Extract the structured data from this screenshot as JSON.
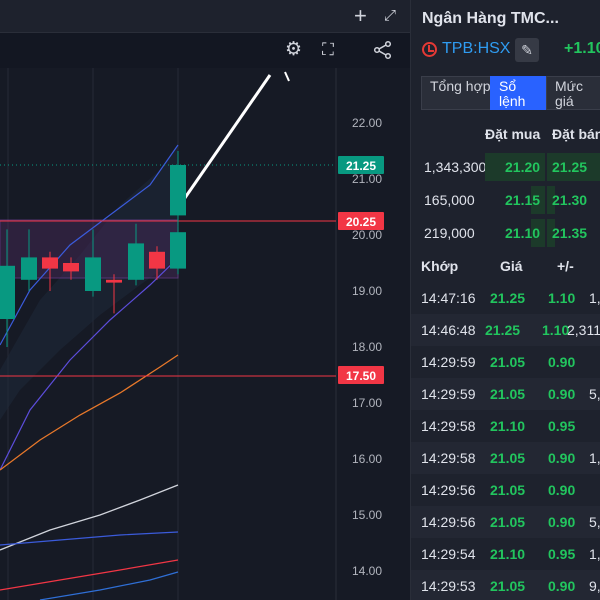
{
  "chart": {
    "price_axis_labels": [
      "22.00",
      "21.00",
      "20.00",
      "19.00",
      "18.00",
      "17.00",
      "16.00",
      "15.00",
      "14.00"
    ],
    "badges": [
      {
        "text": "21.25",
        "color": "#089981"
      },
      {
        "text": "20.25",
        "color": "#f23645"
      },
      {
        "text": "17.50",
        "color": "#f23645"
      }
    ],
    "icons": {
      "add": "plus-icon",
      "expand": "expand-icon",
      "settings": "gear-icon",
      "fullscreen": "fullscreen-icon",
      "share": "share-icon"
    }
  },
  "chart_data": {
    "type": "candlestick",
    "ylim": [
      13.8,
      22.8
    ],
    "candles": [
      {
        "o": 18.5,
        "h": 20.1,
        "l": 18.0,
        "c": 19.45
      },
      {
        "o": 19.2,
        "h": 20.1,
        "l": 19.0,
        "c": 19.6
      },
      {
        "o": 19.6,
        "h": 19.7,
        "l": 19.0,
        "c": 19.4
      },
      {
        "o": 19.5,
        "h": 19.6,
        "l": 19.2,
        "c": 19.35
      },
      {
        "o": 19.0,
        "h": 20.1,
        "l": 18.9,
        "c": 19.6
      },
      {
        "o": 19.2,
        "h": 19.3,
        "l": 18.6,
        "c": 19.15
      },
      {
        "o": 19.2,
        "h": 20.2,
        "l": 19.1,
        "c": 19.85
      },
      {
        "o": 19.7,
        "h": 19.8,
        "l": 19.2,
        "c": 19.4
      },
      {
        "o": 19.4,
        "h": 20.15,
        "l": 19.3,
        "c": 20.05
      },
      {
        "o": 20.35,
        "h": 21.5,
        "l": 20.15,
        "c": 21.25
      }
    ],
    "horizontal_lines": [
      20.25,
      17.5
    ]
  },
  "sidebar": {
    "company_name": "Ngân Hàng TMC...",
    "symbol": "TPB:HSX",
    "change": "+1.10",
    "icons": {
      "clock": "clock-icon",
      "edit": "pencil-icon"
    },
    "tabs": [
      {
        "label": "Tổng hợp",
        "active": false
      },
      {
        "label": "Sổ lệnh",
        "active": true
      },
      {
        "label": "Mức giá",
        "active": false
      }
    ],
    "orderbook": {
      "headers": {
        "bid": "Đặt mua",
        "ask": "Đặt bán"
      },
      "rows": [
        {
          "volume": "1,343,300",
          "bid": "21.20",
          "ask": "21.25"
        },
        {
          "volume": "165,000",
          "bid": "21.15",
          "ask": "21.30"
        },
        {
          "volume": "219,000",
          "bid": "21.10",
          "ask": "21.35"
        }
      ]
    },
    "trades": {
      "headers": {
        "time": "Khớp",
        "price": "Giá",
        "change": "+/-"
      },
      "rows": [
        {
          "time": "14:47:16",
          "price": "21.25",
          "change": "1.10",
          "volume": "1,"
        },
        {
          "time": "14:46:48",
          "price": "21.25",
          "change": "1.10",
          "volume": "2,311,"
        },
        {
          "time": "14:29:59",
          "price": "21.05",
          "change": "0.90",
          "volume": ""
        },
        {
          "time": "14:29:59",
          "price": "21.05",
          "change": "0.90",
          "volume": "5,"
        },
        {
          "time": "14:29:58",
          "price": "21.10",
          "change": "0.95",
          "volume": ""
        },
        {
          "time": "14:29:58",
          "price": "21.05",
          "change": "0.90",
          "volume": "1,"
        },
        {
          "time": "14:29:56",
          "price": "21.05",
          "change": "0.90",
          "volume": ""
        },
        {
          "time": "14:29:56",
          "price": "21.05",
          "change": "0.90",
          "volume": "5,"
        },
        {
          "time": "14:29:54",
          "price": "21.10",
          "change": "0.95",
          "volume": "1,"
        },
        {
          "time": "14:29:53",
          "price": "21.05",
          "change": "0.90",
          "volume": "9,"
        }
      ]
    }
  }
}
